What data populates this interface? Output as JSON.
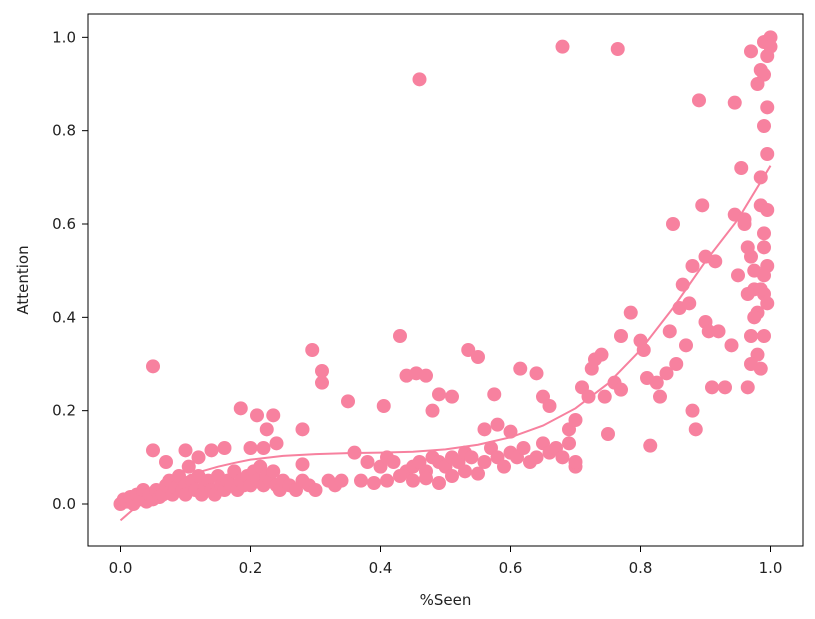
{
  "chart_data": {
    "type": "scatter",
    "title": "",
    "xlabel": "%Seen",
    "ylabel": "Attention",
    "xlim": [
      -0.05,
      1.05
    ],
    "ylim": [
      -0.09,
      1.05
    ],
    "xticks": [
      0.0,
      0.2,
      0.4,
      0.6,
      0.8,
      1.0
    ],
    "xtick_labels": [
      "0.0",
      "0.2",
      "0.4",
      "0.6",
      "0.8",
      "1.0"
    ],
    "yticks": [
      0.0,
      0.2,
      0.4,
      0.6,
      0.8,
      1.0
    ],
    "ytick_labels": [
      "0.0",
      "0.2",
      "0.4",
      "0.6",
      "0.8",
      "1.0"
    ],
    "grid": false,
    "legend": "none",
    "marker_color": "#F7819F",
    "trend_color": "#F7819F",
    "series": [
      {
        "points": [
          [
            0.0,
            0.0
          ],
          [
            0.005,
            0.01
          ],
          [
            0.01,
            0.005
          ],
          [
            0.015,
            0.015
          ],
          [
            0.02,
            0.0
          ],
          [
            0.025,
            0.02
          ],
          [
            0.03,
            0.01
          ],
          [
            0.035,
            0.03
          ],
          [
            0.04,
            0.005
          ],
          [
            0.045,
            0.02
          ],
          [
            0.05,
            0.01
          ],
          [
            0.055,
            0.03
          ],
          [
            0.06,
            0.015
          ],
          [
            0.065,
            0.02
          ],
          [
            0.07,
            0.04
          ],
          [
            0.075,
            0.05
          ],
          [
            0.08,
            0.02
          ],
          [
            0.085,
            0.035
          ],
          [
            0.09,
            0.06
          ],
          [
            0.095,
            0.03
          ],
          [
            0.1,
            0.04
          ],
          [
            0.1,
            0.02
          ],
          [
            0.105,
            0.08
          ],
          [
            0.11,
            0.05
          ],
          [
            0.115,
            0.03
          ],
          [
            0.12,
            0.06
          ],
          [
            0.125,
            0.02
          ],
          [
            0.13,
            0.04
          ],
          [
            0.135,
            0.05
          ],
          [
            0.14,
            0.03
          ],
          [
            0.145,
            0.02
          ],
          [
            0.15,
            0.06
          ],
          [
            0.155,
            0.04
          ],
          [
            0.16,
            0.03
          ],
          [
            0.165,
            0.05
          ],
          [
            0.17,
            0.04
          ],
          [
            0.175,
            0.07
          ],
          [
            0.18,
            0.03
          ],
          [
            0.185,
            0.05
          ],
          [
            0.19,
            0.04
          ],
          [
            0.195,
            0.06
          ],
          [
            0.2,
            0.04
          ],
          [
            0.205,
            0.07
          ],
          [
            0.21,
            0.05
          ],
          [
            0.215,
            0.08
          ],
          [
            0.22,
            0.04
          ],
          [
            0.225,
            0.06
          ],
          [
            0.23,
            0.05
          ],
          [
            0.235,
            0.07
          ],
          [
            0.24,
            0.04
          ],
          [
            0.245,
            0.03
          ],
          [
            0.25,
            0.05
          ],
          [
            0.26,
            0.04
          ],
          [
            0.27,
            0.03
          ],
          [
            0.28,
            0.05
          ],
          [
            0.29,
            0.04
          ],
          [
            0.3,
            0.03
          ],
          [
            0.32,
            0.05
          ],
          [
            0.33,
            0.04
          ],
          [
            0.34,
            0.05
          ],
          [
            0.05,
            0.115
          ],
          [
            0.07,
            0.09
          ],
          [
            0.1,
            0.115
          ],
          [
            0.12,
            0.1
          ],
          [
            0.14,
            0.115
          ],
          [
            0.16,
            0.12
          ],
          [
            0.2,
            0.12
          ],
          [
            0.22,
            0.12
          ],
          [
            0.24,
            0.13
          ],
          [
            0.28,
            0.085
          ],
          [
            0.05,
            0.295
          ],
          [
            0.185,
            0.205
          ],
          [
            0.21,
            0.19
          ],
          [
            0.235,
            0.19
          ],
          [
            0.225,
            0.16
          ],
          [
            0.28,
            0.16
          ],
          [
            0.295,
            0.33
          ],
          [
            0.31,
            0.285
          ],
          [
            0.31,
            0.26
          ],
          [
            0.35,
            0.22
          ],
          [
            0.36,
            0.11
          ],
          [
            0.38,
            0.09
          ],
          [
            0.4,
            0.08
          ],
          [
            0.41,
            0.1
          ],
          [
            0.42,
            0.09
          ],
          [
            0.44,
            0.07
          ],
          [
            0.45,
            0.08
          ],
          [
            0.46,
            0.09
          ],
          [
            0.47,
            0.07
          ],
          [
            0.48,
            0.1
          ],
          [
            0.49,
            0.09
          ],
          [
            0.5,
            0.08
          ],
          [
            0.51,
            0.1
          ],
          [
            0.52,
            0.09
          ],
          [
            0.53,
            0.11
          ],
          [
            0.54,
            0.1
          ],
          [
            0.56,
            0.09
          ],
          [
            0.57,
            0.12
          ],
          [
            0.58,
            0.1
          ],
          [
            0.59,
            0.08
          ],
          [
            0.6,
            0.11
          ],
          [
            0.61,
            0.1
          ],
          [
            0.62,
            0.12
          ],
          [
            0.63,
            0.09
          ],
          [
            0.64,
            0.1
          ],
          [
            0.65,
            0.13
          ],
          [
            0.66,
            0.11
          ],
          [
            0.67,
            0.12
          ],
          [
            0.68,
            0.1
          ],
          [
            0.69,
            0.13
          ],
          [
            0.37,
            0.05
          ],
          [
            0.39,
            0.045
          ],
          [
            0.41,
            0.05
          ],
          [
            0.43,
            0.06
          ],
          [
            0.45,
            0.05
          ],
          [
            0.47,
            0.055
          ],
          [
            0.49,
            0.045
          ],
          [
            0.51,
            0.06
          ],
          [
            0.53,
            0.07
          ],
          [
            0.55,
            0.065
          ],
          [
            0.405,
            0.21
          ],
          [
            0.43,
            0.36
          ],
          [
            0.44,
            0.275
          ],
          [
            0.455,
            0.28
          ],
          [
            0.47,
            0.275
          ],
          [
            0.48,
            0.2
          ],
          [
            0.49,
            0.235
          ],
          [
            0.51,
            0.23
          ],
          [
            0.535,
            0.33
          ],
          [
            0.55,
            0.315
          ],
          [
            0.56,
            0.16
          ],
          [
            0.575,
            0.235
          ],
          [
            0.58,
            0.17
          ],
          [
            0.6,
            0.155
          ],
          [
            0.615,
            0.29
          ],
          [
            0.64,
            0.28
          ],
          [
            0.65,
            0.23
          ],
          [
            0.66,
            0.21
          ],
          [
            0.69,
            0.16
          ],
          [
            0.7,
            0.18
          ],
          [
            0.46,
            0.91
          ],
          [
            0.68,
            0.98
          ],
          [
            0.765,
            0.975
          ],
          [
            0.7,
            0.08
          ],
          [
            0.7,
            0.09
          ],
          [
            0.71,
            0.25
          ],
          [
            0.72,
            0.23
          ],
          [
            0.725,
            0.29
          ],
          [
            0.73,
            0.31
          ],
          [
            0.74,
            0.32
          ],
          [
            0.745,
            0.23
          ],
          [
            0.75,
            0.15
          ],
          [
            0.76,
            0.26
          ],
          [
            0.77,
            0.245
          ],
          [
            0.77,
            0.36
          ],
          [
            0.785,
            0.41
          ],
          [
            0.8,
            0.35
          ],
          [
            0.805,
            0.33
          ],
          [
            0.81,
            0.27
          ],
          [
            0.815,
            0.125
          ],
          [
            0.825,
            0.26
          ],
          [
            0.83,
            0.23
          ],
          [
            0.84,
            0.28
          ],
          [
            0.845,
            0.37
          ],
          [
            0.85,
            0.6
          ],
          [
            0.855,
            0.3
          ],
          [
            0.86,
            0.42
          ],
          [
            0.865,
            0.47
          ],
          [
            0.87,
            0.34
          ],
          [
            0.875,
            0.43
          ],
          [
            0.88,
            0.51
          ],
          [
            0.88,
            0.2
          ],
          [
            0.885,
            0.16
          ],
          [
            0.89,
            0.865
          ],
          [
            0.895,
            0.64
          ],
          [
            0.9,
            0.39
          ],
          [
            0.9,
            0.53
          ],
          [
            0.905,
            0.37
          ],
          [
            0.91,
            0.25
          ],
          [
            0.915,
            0.52
          ],
          [
            0.92,
            0.37
          ],
          [
            0.93,
            0.25
          ],
          [
            0.94,
            0.34
          ],
          [
            0.945,
            0.86
          ],
          [
            0.945,
            0.62
          ],
          [
            0.95,
            0.49
          ],
          [
            0.955,
            0.72
          ],
          [
            0.96,
            0.6
          ],
          [
            0.965,
            0.45
          ],
          [
            0.965,
            0.25
          ],
          [
            0.97,
            0.97
          ],
          [
            0.97,
            0.36
          ],
          [
            0.975,
            0.5
          ],
          [
            0.98,
            0.41
          ],
          [
            0.98,
            0.32
          ],
          [
            0.985,
            0.93
          ],
          [
            0.985,
            0.64
          ],
          [
            0.985,
            0.29
          ],
          [
            0.99,
            0.99
          ],
          [
            0.99,
            0.81
          ],
          [
            0.99,
            0.55
          ],
          [
            0.99,
            0.45
          ],
          [
            0.995,
            0.75
          ],
          [
            0.995,
            0.85
          ],
          [
            0.995,
            0.63
          ],
          [
            0.995,
            0.51
          ],
          [
            0.995,
            0.43
          ],
          [
            1.0,
            1.0
          ],
          [
            1.0,
            0.98
          ],
          [
            0.995,
            0.96
          ],
          [
            0.99,
            0.92
          ],
          [
            0.98,
            0.9
          ],
          [
            0.975,
            0.46
          ],
          [
            0.97,
            0.53
          ],
          [
            0.965,
            0.55
          ],
          [
            0.96,
            0.61
          ],
          [
            0.985,
            0.7
          ],
          [
            0.99,
            0.58
          ],
          [
            0.99,
            0.49
          ],
          [
            0.975,
            0.4
          ],
          [
            0.99,
            0.36
          ],
          [
            0.985,
            0.46
          ],
          [
            0.97,
            0.3
          ]
        ]
      }
    ],
    "trend_line": {
      "x": [
        0.0,
        0.025,
        0.05,
        0.075,
        0.1,
        0.125,
        0.15,
        0.175,
        0.2,
        0.25,
        0.3,
        0.35,
        0.4,
        0.45,
        0.5,
        0.55,
        0.6,
        0.65,
        0.7,
        0.75,
        0.8,
        0.85,
        0.9,
        0.95,
        1.0
      ],
      "y": [
        -0.035,
        -0.005,
        0.02,
        0.04,
        0.057,
        0.07,
        0.08,
        0.088,
        0.095,
        0.103,
        0.107,
        0.109,
        0.11,
        0.112,
        0.117,
        0.127,
        0.143,
        0.168,
        0.205,
        0.258,
        0.33,
        0.42,
        0.52,
        0.61,
        0.725
      ]
    }
  }
}
